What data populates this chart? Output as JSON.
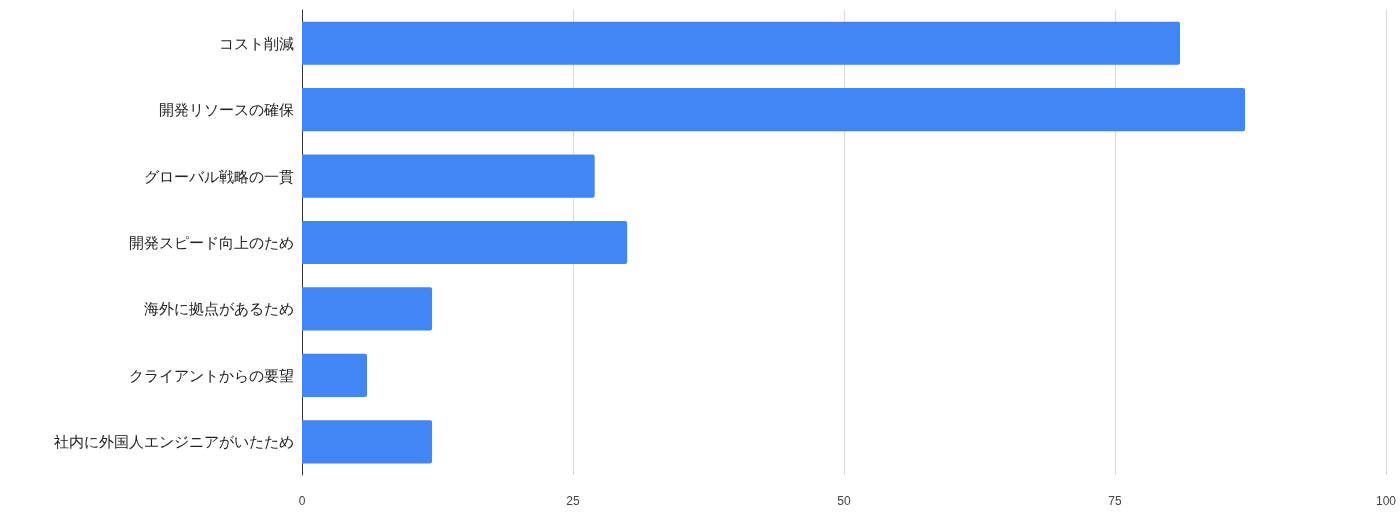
{
  "chart_data": {
    "type": "bar",
    "orientation": "horizontal",
    "categories": [
      "コスト削減",
      "開発リソースの確保",
      "グローバル戦略の一貫",
      "開発スピード向上のため",
      "海外に拠点があるため",
      "クライアントからの要望",
      "社内に外国人エンジニアがいたため"
    ],
    "values": [
      81,
      87,
      27,
      30,
      12,
      6,
      12
    ],
    "color": "#4285f4",
    "xlim": [
      0,
      100
    ],
    "xticks": [
      0,
      25,
      50,
      75,
      100
    ],
    "grid": "x"
  }
}
